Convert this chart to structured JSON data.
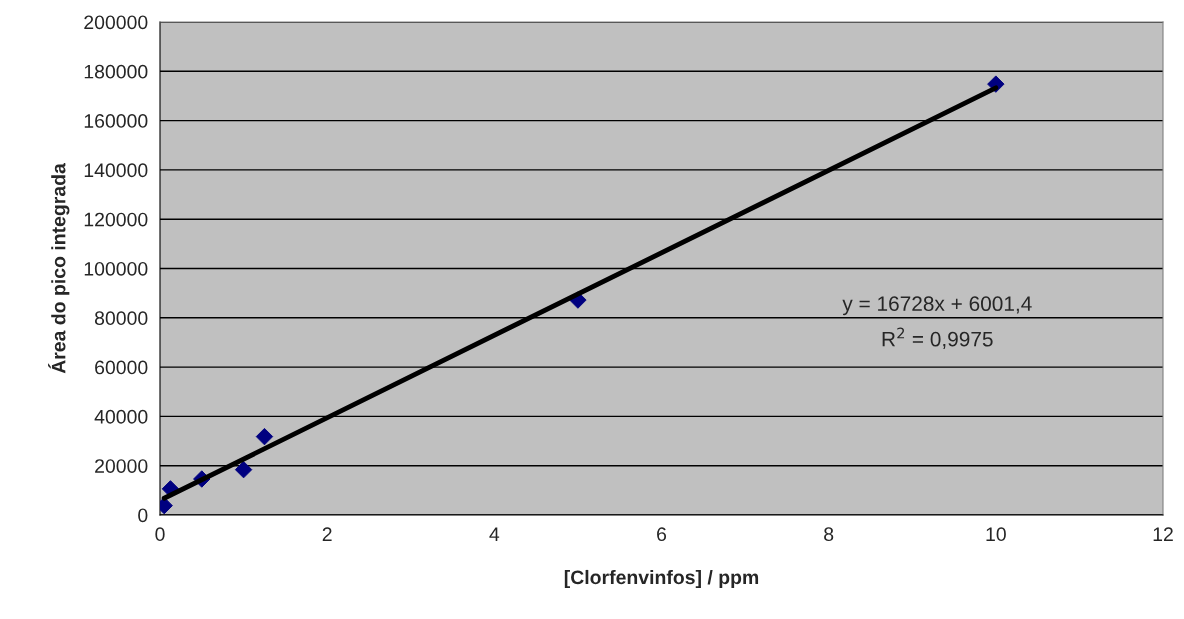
{
  "chart_data": {
    "type": "scatter",
    "xlabel": "[Clorfenvinfos] / ppm",
    "ylabel": "Área do pico integrada",
    "xlim": [
      0,
      12
    ],
    "xticks": [
      0,
      2,
      4,
      6,
      8,
      10,
      12
    ],
    "ylim": [
      0,
      200000
    ],
    "yticks": [
      0,
      20000,
      40000,
      60000,
      80000,
      100000,
      120000,
      140000,
      160000,
      180000,
      200000
    ],
    "grid": "y",
    "series": [
      {
        "marker": "diamond",
        "color": "#000080",
        "x": [
          0.05,
          0.125,
          0.5,
          1,
          1.25,
          5,
          10
        ],
        "values": [
          3800,
          10600,
          14600,
          18400,
          31800,
          87200,
          174800
        ]
      },
      {
        "type": "line",
        "marker": "none",
        "color": "#000000",
        "x": [
          0.05,
          10
        ],
        "values": [
          6800,
          173300
        ]
      }
    ],
    "annotations": [
      "y = 16728x + 6001,4",
      "R$^{2}$ = 0,9975"
    ]
  }
}
